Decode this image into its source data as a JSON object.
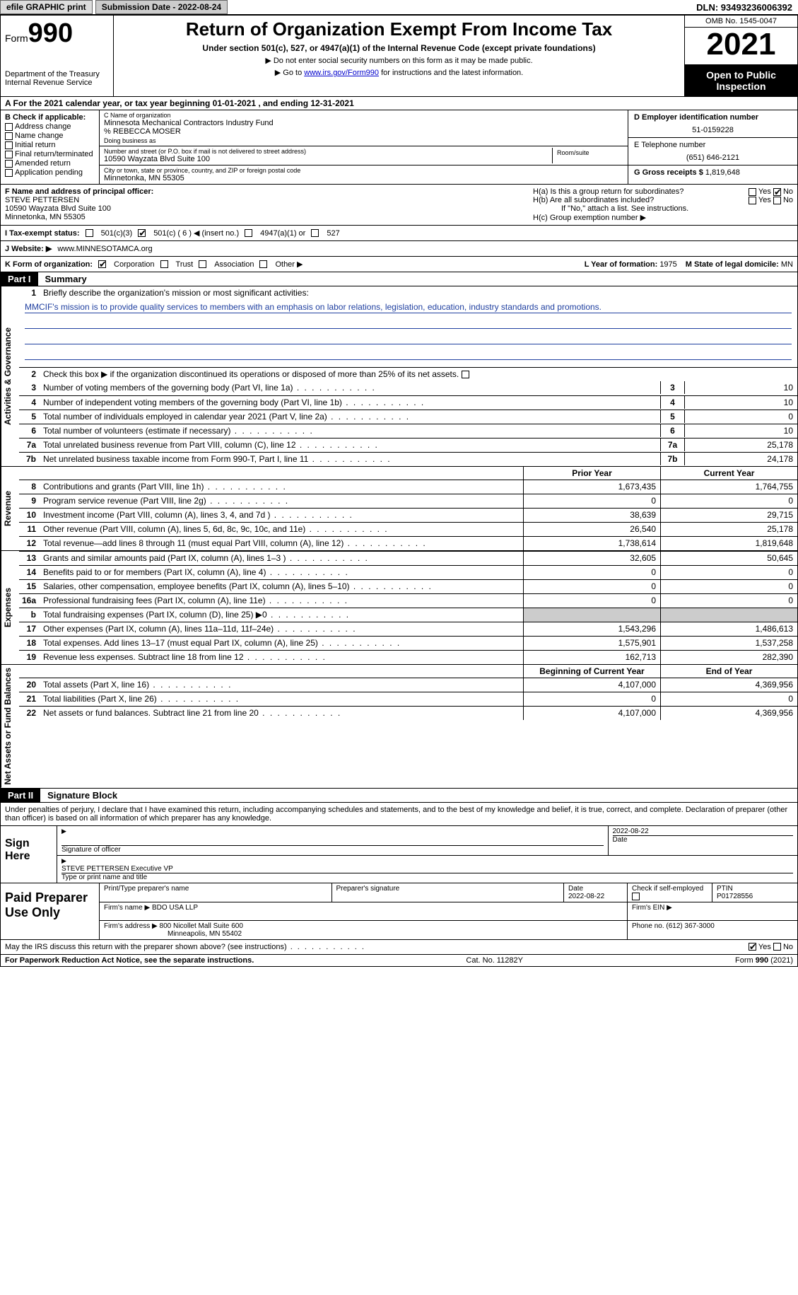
{
  "topbar": {
    "efile": "efile GRAPHIC print",
    "sub_label": "Submission Date - 2022-08-24",
    "dln": "DLN: 93493236006392"
  },
  "header": {
    "form_word": "Form",
    "form_num": "990",
    "dept1": "Department of the Treasury",
    "dept2": "Internal Revenue Service",
    "title": "Return of Organization Exempt From Income Tax",
    "sub1": "Under section 501(c), 527, or 4947(a)(1) of the Internal Revenue Code (except private foundations)",
    "sub2": "▶ Do not enter social security numbers on this form as it may be made public.",
    "sub3_pre": "▶ Go to ",
    "sub3_link": "www.irs.gov/Form990",
    "sub3_post": " for instructions and the latest information.",
    "omb": "OMB No. 1545-0047",
    "year": "2021",
    "open": "Open to Public Inspection"
  },
  "rowA": "A For the 2021 calendar year, or tax year beginning 01-01-2021    , and ending 12-31-2021",
  "colB": {
    "title": "B Check if applicable:",
    "items": [
      "Address change",
      "Name change",
      "Initial return",
      "Final return/terminated",
      "Amended return",
      "Application pending"
    ]
  },
  "colC": {
    "name_label": "C Name of organization",
    "name1": "Minnesota Mechanical Contractors Industry Fund",
    "name2": "% REBECCA MOSER",
    "dba_label": "Doing business as",
    "addr_label": "Number and street (or P.O. box if mail is not delivered to street address)",
    "room_label": "Room/suite",
    "addr": "10590 Wayzata Blvd Suite 100",
    "city_label": "City or town, state or province, country, and ZIP or foreign postal code",
    "city": "Minnetonka, MN  55305"
  },
  "colD": {
    "ein_label": "D Employer identification number",
    "ein": "51-0159228",
    "tel_label": "E Telephone number",
    "tel": "(651) 646-2121",
    "gross_label": "G Gross receipts $",
    "gross": "1,819,648"
  },
  "rowF": {
    "label": "F Name and address of principal officer:",
    "name": "STEVE PETTERSEN",
    "addr1": "10590 Wayzata Blvd Suite 100",
    "addr2": "Minnetonka, MN  55305"
  },
  "rowH": {
    "ha": "H(a)  Is this a group return for subordinates?",
    "hb": "H(b)  Are all subordinates included?",
    "hb_note": "If \"No,\" attach a list. See instructions.",
    "hc": "H(c)  Group exemption number ▶",
    "yes": "Yes",
    "no": "No"
  },
  "rowI": {
    "label": "I   Tax-exempt status:",
    "o1": "501(c)(3)",
    "o2": "501(c) ( 6 ) ◀ (insert no.)",
    "o3": "4947(a)(1) or",
    "o4": "527"
  },
  "rowJ": {
    "label": "J   Website: ▶",
    "val": "www.MINNESOTAMCA.org"
  },
  "rowK": {
    "label": "K Form of organization:",
    "o1": "Corporation",
    "o2": "Trust",
    "o3": "Association",
    "o4": "Other ▶",
    "year_label": "L Year of formation:",
    "year": "1975",
    "state_label": "M State of legal domicile:",
    "state": "MN"
  },
  "part1": {
    "tag": "Part I",
    "title": "Summary",
    "l1_label": "Briefly describe the organization's mission or most significant activities:",
    "l1_text": "MMCIF's mission is to provide quality services to members with an emphasis on labor relations, legislation, education, industry standards and promotions.",
    "l2": "Check this box ▶        if the organization discontinued its operations or disposed of more than 25% of its net assets.",
    "lines_single": [
      {
        "n": "3",
        "d": "Number of voting members of the governing body (Part VI, line 1a)",
        "v": "10"
      },
      {
        "n": "4",
        "d": "Number of independent voting members of the governing body (Part VI, line 1b)",
        "v": "10"
      },
      {
        "n": "5",
        "d": "Total number of individuals employed in calendar year 2021 (Part V, line 2a)",
        "v": "0"
      },
      {
        "n": "6",
        "d": "Total number of volunteers (estimate if necessary)",
        "v": "10"
      },
      {
        "n": "7a",
        "d": "Total unrelated business revenue from Part VIII, column (C), line 12",
        "v": "25,178"
      },
      {
        "n": "7b",
        "d": "Net unrelated business taxable income from Form 990-T, Part I, line 11",
        "v": "24,178"
      }
    ],
    "col_prior": "Prior Year",
    "col_curr": "Current Year",
    "revenue": [
      {
        "n": "8",
        "d": "Contributions and grants (Part VIII, line 1h)",
        "p": "1,673,435",
        "c": "1,764,755"
      },
      {
        "n": "9",
        "d": "Program service revenue (Part VIII, line 2g)",
        "p": "0",
        "c": "0"
      },
      {
        "n": "10",
        "d": "Investment income (Part VIII, column (A), lines 3, 4, and 7d )",
        "p": "38,639",
        "c": "29,715"
      },
      {
        "n": "11",
        "d": "Other revenue (Part VIII, column (A), lines 5, 6d, 8c, 9c, 10c, and 11e)",
        "p": "26,540",
        "c": "25,178"
      },
      {
        "n": "12",
        "d": "Total revenue—add lines 8 through 11 (must equal Part VIII, column (A), line 12)",
        "p": "1,738,614",
        "c": "1,819,648"
      }
    ],
    "expenses": [
      {
        "n": "13",
        "d": "Grants and similar amounts paid (Part IX, column (A), lines 1–3 )",
        "p": "32,605",
        "c": "50,645"
      },
      {
        "n": "14",
        "d": "Benefits paid to or for members (Part IX, column (A), line 4)",
        "p": "0",
        "c": "0"
      },
      {
        "n": "15",
        "d": "Salaries, other compensation, employee benefits (Part IX, column (A), lines 5–10)",
        "p": "0",
        "c": "0"
      },
      {
        "n": "16a",
        "d": "Professional fundraising fees (Part IX, column (A), line 11e)",
        "p": "0",
        "c": "0"
      },
      {
        "n": "b",
        "d": "Total fundraising expenses (Part IX, column (D), line 25) ▶0",
        "p": "",
        "c": "",
        "shade": true
      },
      {
        "n": "17",
        "d": "Other expenses (Part IX, column (A), lines 11a–11d, 11f–24e)",
        "p": "1,543,296",
        "c": "1,486,613"
      },
      {
        "n": "18",
        "d": "Total expenses. Add lines 13–17 (must equal Part IX, column (A), line 25)",
        "p": "1,575,901",
        "c": "1,537,258"
      },
      {
        "n": "19",
        "d": "Revenue less expenses. Subtract line 18 from line 12",
        "p": "162,713",
        "c": "282,390"
      }
    ],
    "col_begin": "Beginning of Current Year",
    "col_end": "End of Year",
    "netassets": [
      {
        "n": "20",
        "d": "Total assets (Part X, line 16)",
        "p": "4,107,000",
        "c": "4,369,956"
      },
      {
        "n": "21",
        "d": "Total liabilities (Part X, line 26)",
        "p": "0",
        "c": "0"
      },
      {
        "n": "22",
        "d": "Net assets or fund balances. Subtract line 21 from line 20",
        "p": "4,107,000",
        "c": "4,369,956"
      }
    ],
    "vlabel_ag": "Activities & Governance",
    "vlabel_rev": "Revenue",
    "vlabel_exp": "Expenses",
    "vlabel_na": "Net Assets or Fund Balances"
  },
  "part2": {
    "tag": "Part II",
    "title": "Signature Block",
    "decl": "Under penalties of perjury, I declare that I have examined this return, including accompanying schedules and statements, and to the best of my knowledge and belief, it is true, correct, and complete. Declaration of preparer (other than officer) is based on all information of which preparer has any knowledge.",
    "sign_here": "Sign Here",
    "sig_off": "Signature of officer",
    "sig_date": "2022-08-22",
    "date_label": "Date",
    "name_title": "STEVE PETTERSEN Executive VP",
    "type_label": "Type or print name and title",
    "paid": "Paid Preparer Use Only",
    "p_name_label": "Print/Type preparer's name",
    "p_sig_label": "Preparer's signature",
    "p_date_label": "Date",
    "p_date": "2022-08-22",
    "p_check": "Check         if self-employed",
    "ptin_label": "PTIN",
    "ptin": "P01728556",
    "firm_name_label": "Firm's name    ▶",
    "firm_name": "BDO USA LLP",
    "firm_ein_label": "Firm's EIN ▶",
    "firm_addr_label": "Firm's address ▶",
    "firm_addr1": "800 Nicollet Mall Suite 600",
    "firm_addr2": "Minneapolis, MN  55402",
    "firm_phone_label": "Phone no.",
    "firm_phone": "(612) 367-3000",
    "discuss": "May the IRS discuss this return with the preparer shown above? (see instructions)"
  },
  "footer": {
    "pra": "For Paperwork Reduction Act Notice, see the separate instructions.",
    "cat": "Cat. No. 11282Y",
    "form": "Form 990 (2021)"
  }
}
